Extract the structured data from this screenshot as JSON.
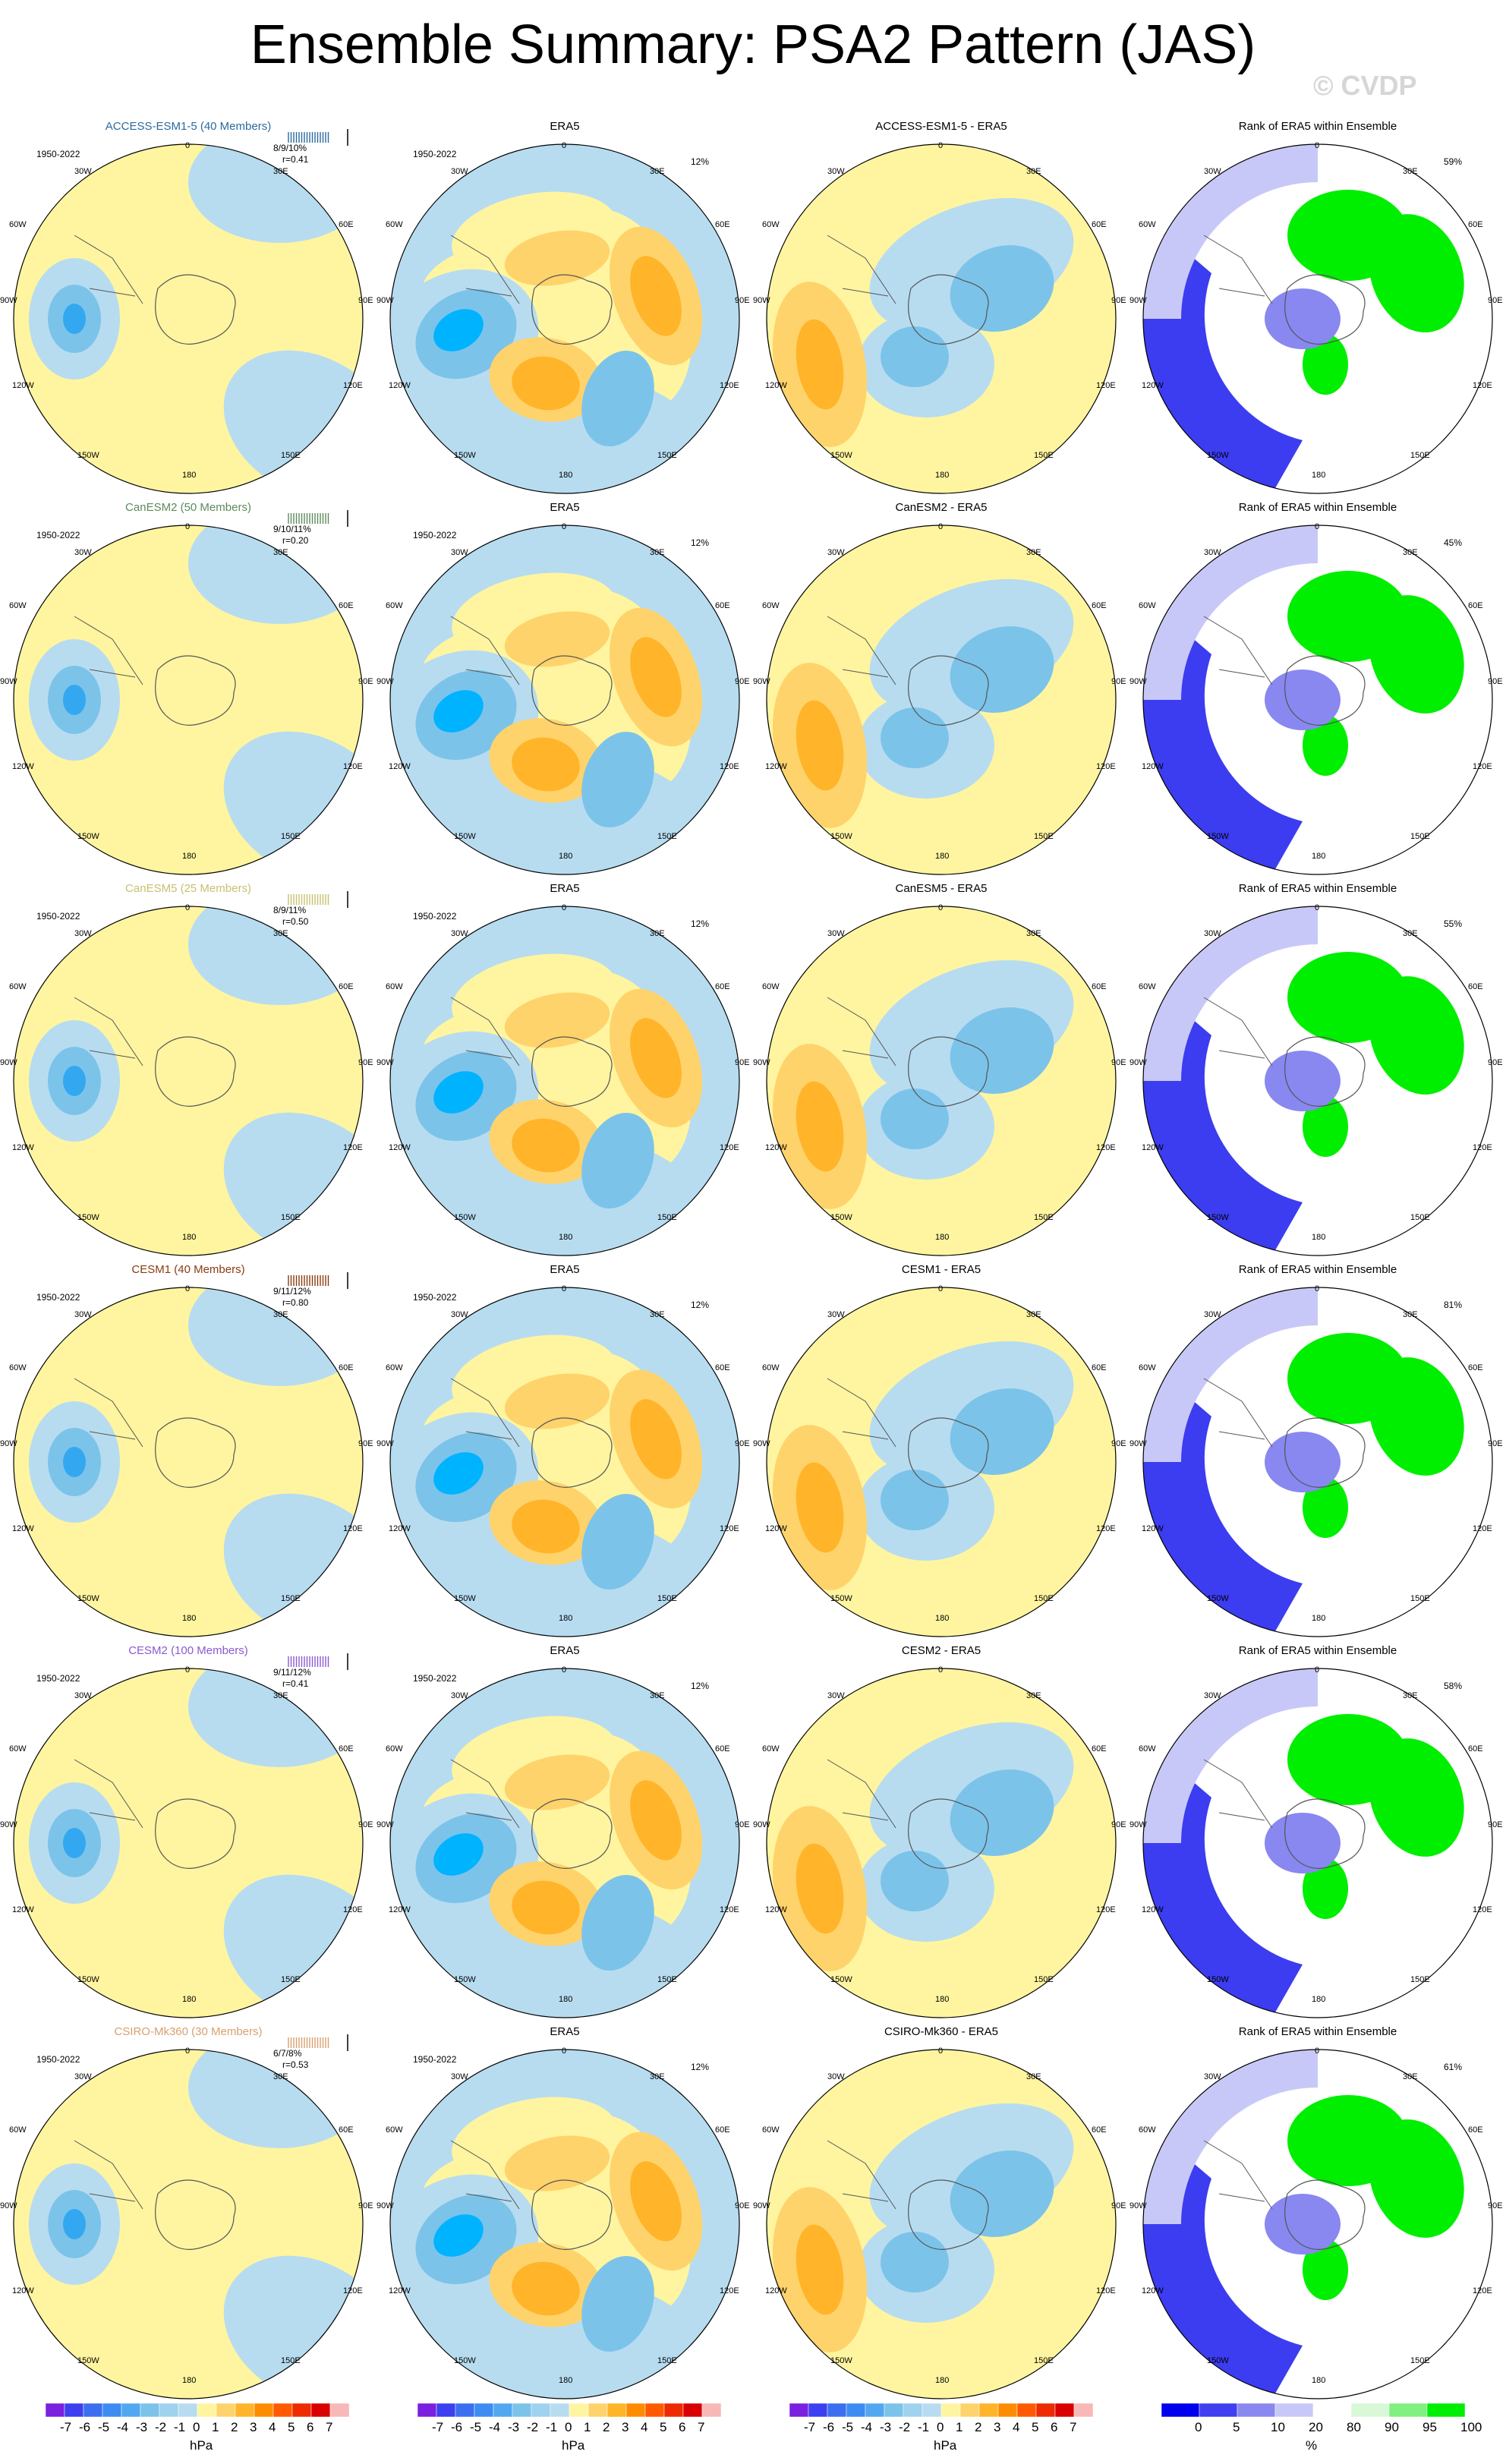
{
  "title": "Ensemble Summary: PSA2 Pattern (JAS)",
  "copyright": "© CVDP",
  "axis_labels": {
    "lon_0": "0",
    "lon_30e": "30E",
    "lon_60e": "60E",
    "lon_90e": "90E",
    "lon_120e": "120E",
    "lon_150e": "150E",
    "lon_180": "180",
    "lon_150w": "150W",
    "lon_120w": "120W",
    "lon_90w": "90W",
    "lon_60w": "60W",
    "lon_30w": "30W"
  },
  "colors": {
    "pos1": "#fff5a0",
    "pos2": "#ffd36b",
    "pos3": "#ffb42a",
    "pos4": "#ff8c00",
    "neg1": "#b7dcf0",
    "neg2": "#7cc3ea",
    "neg3": "#33a8f0",
    "neg4": "#00b3ff",
    "rank_hi": "#00ee00",
    "rank_lo": "#0000ee"
  },
  "rows": [
    {
      "model_title": "ACCESS-ESM1-5 (40 Members)",
      "model_color": "#2a6aa0",
      "period": "1950-2022",
      "stats_pct": "8/9/10%",
      "stats_r": "r=0.41",
      "era5_title": "ERA5",
      "era5_period": "1950-2022",
      "era5_pct": "12%",
      "diff_title": "ACCESS-ESM1-5 - ERA5",
      "rank_title": "Rank of ERA5 within Ensemble",
      "rank_pct": "59%"
    },
    {
      "model_title": "CanESM2 (50 Members)",
      "model_color": "#5c8a5c",
      "period": "1950-2022",
      "stats_pct": "9/10/11%",
      "stats_r": "r=0.20",
      "era5_title": "ERA5",
      "era5_period": "1950-2022",
      "era5_pct": "12%",
      "diff_title": "CanESM2 - ERA5",
      "rank_title": "Rank of ERA5 within Ensemble",
      "rank_pct": "45%"
    },
    {
      "model_title": "CanESM5 (25 Members)",
      "model_color": "#c8c070",
      "period": "1950-2022",
      "stats_pct": "8/9/11%",
      "stats_r": "r=0.50",
      "era5_title": "ERA5",
      "era5_period": "1950-2022",
      "era5_pct": "12%",
      "diff_title": "CanESM5 - ERA5",
      "rank_title": "Rank of ERA5 within Ensemble",
      "rank_pct": "55%"
    },
    {
      "model_title": "CESM1 (40 Members)",
      "model_color": "#8a3a10",
      "period": "1950-2022",
      "stats_pct": "9/11/12%",
      "stats_r": "r=0.80",
      "era5_title": "ERA5",
      "era5_period": "1950-2022",
      "era5_pct": "12%",
      "diff_title": "CESM1 - ERA5",
      "rank_title": "Rank of ERA5 within Ensemble",
      "rank_pct": "81%"
    },
    {
      "model_title": "CESM2 (100 Members)",
      "model_color": "#8a5ad0",
      "period": "1950-2022",
      "stats_pct": "9/11/12%",
      "stats_r": "r=0.41",
      "era5_title": "ERA5",
      "era5_period": "1950-2022",
      "era5_pct": "12%",
      "diff_title": "CESM2 - ERA5",
      "rank_title": "Rank of ERA5 within Ensemble",
      "rank_pct": "58%"
    },
    {
      "model_title": "CSIRO-Mk360 (30 Members)",
      "model_color": "#d8a070",
      "period": "1950-2022",
      "stats_pct": "6/7/8%",
      "stats_r": "r=0.53",
      "era5_title": "ERA5",
      "era5_period": "1950-2022",
      "era5_pct": "12%",
      "diff_title": "CSIRO-Mk360 - ERA5",
      "rank_title": "Rank of ERA5 within Ensemble",
      "rank_pct": "61%"
    }
  ],
  "colorbars": {
    "hpa_ticks": [
      "-7",
      "-6",
      "-5",
      "-4",
      "-3",
      "-2",
      "-1",
      "0",
      "1",
      "2",
      "3",
      "4",
      "5",
      "6",
      "7"
    ],
    "hpa_colors": [
      "#7a20e0",
      "#3c40f0",
      "#3c6ef0",
      "#3c8cf4",
      "#52a8f0",
      "#7cc3ea",
      "#9ed2ee",
      "#b7dcf0",
      "#fff5a0",
      "#ffd36b",
      "#ffb42a",
      "#ff8c00",
      "#ff5a00",
      "#ee2a00",
      "#d80000",
      "#f8b8b8"
    ],
    "hpa_unit": "hPa",
    "rank_ticks": [
      "0",
      "5",
      "10",
      "20",
      "80",
      "90",
      "95",
      "100"
    ],
    "rank_colors": [
      "#0000ee",
      "#4040f0",
      "#8888f0",
      "#c8c8f8",
      "#ffffff",
      "#d8f8d8",
      "#80f080",
      "#00ee00"
    ],
    "rank_unit": "%"
  }
}
